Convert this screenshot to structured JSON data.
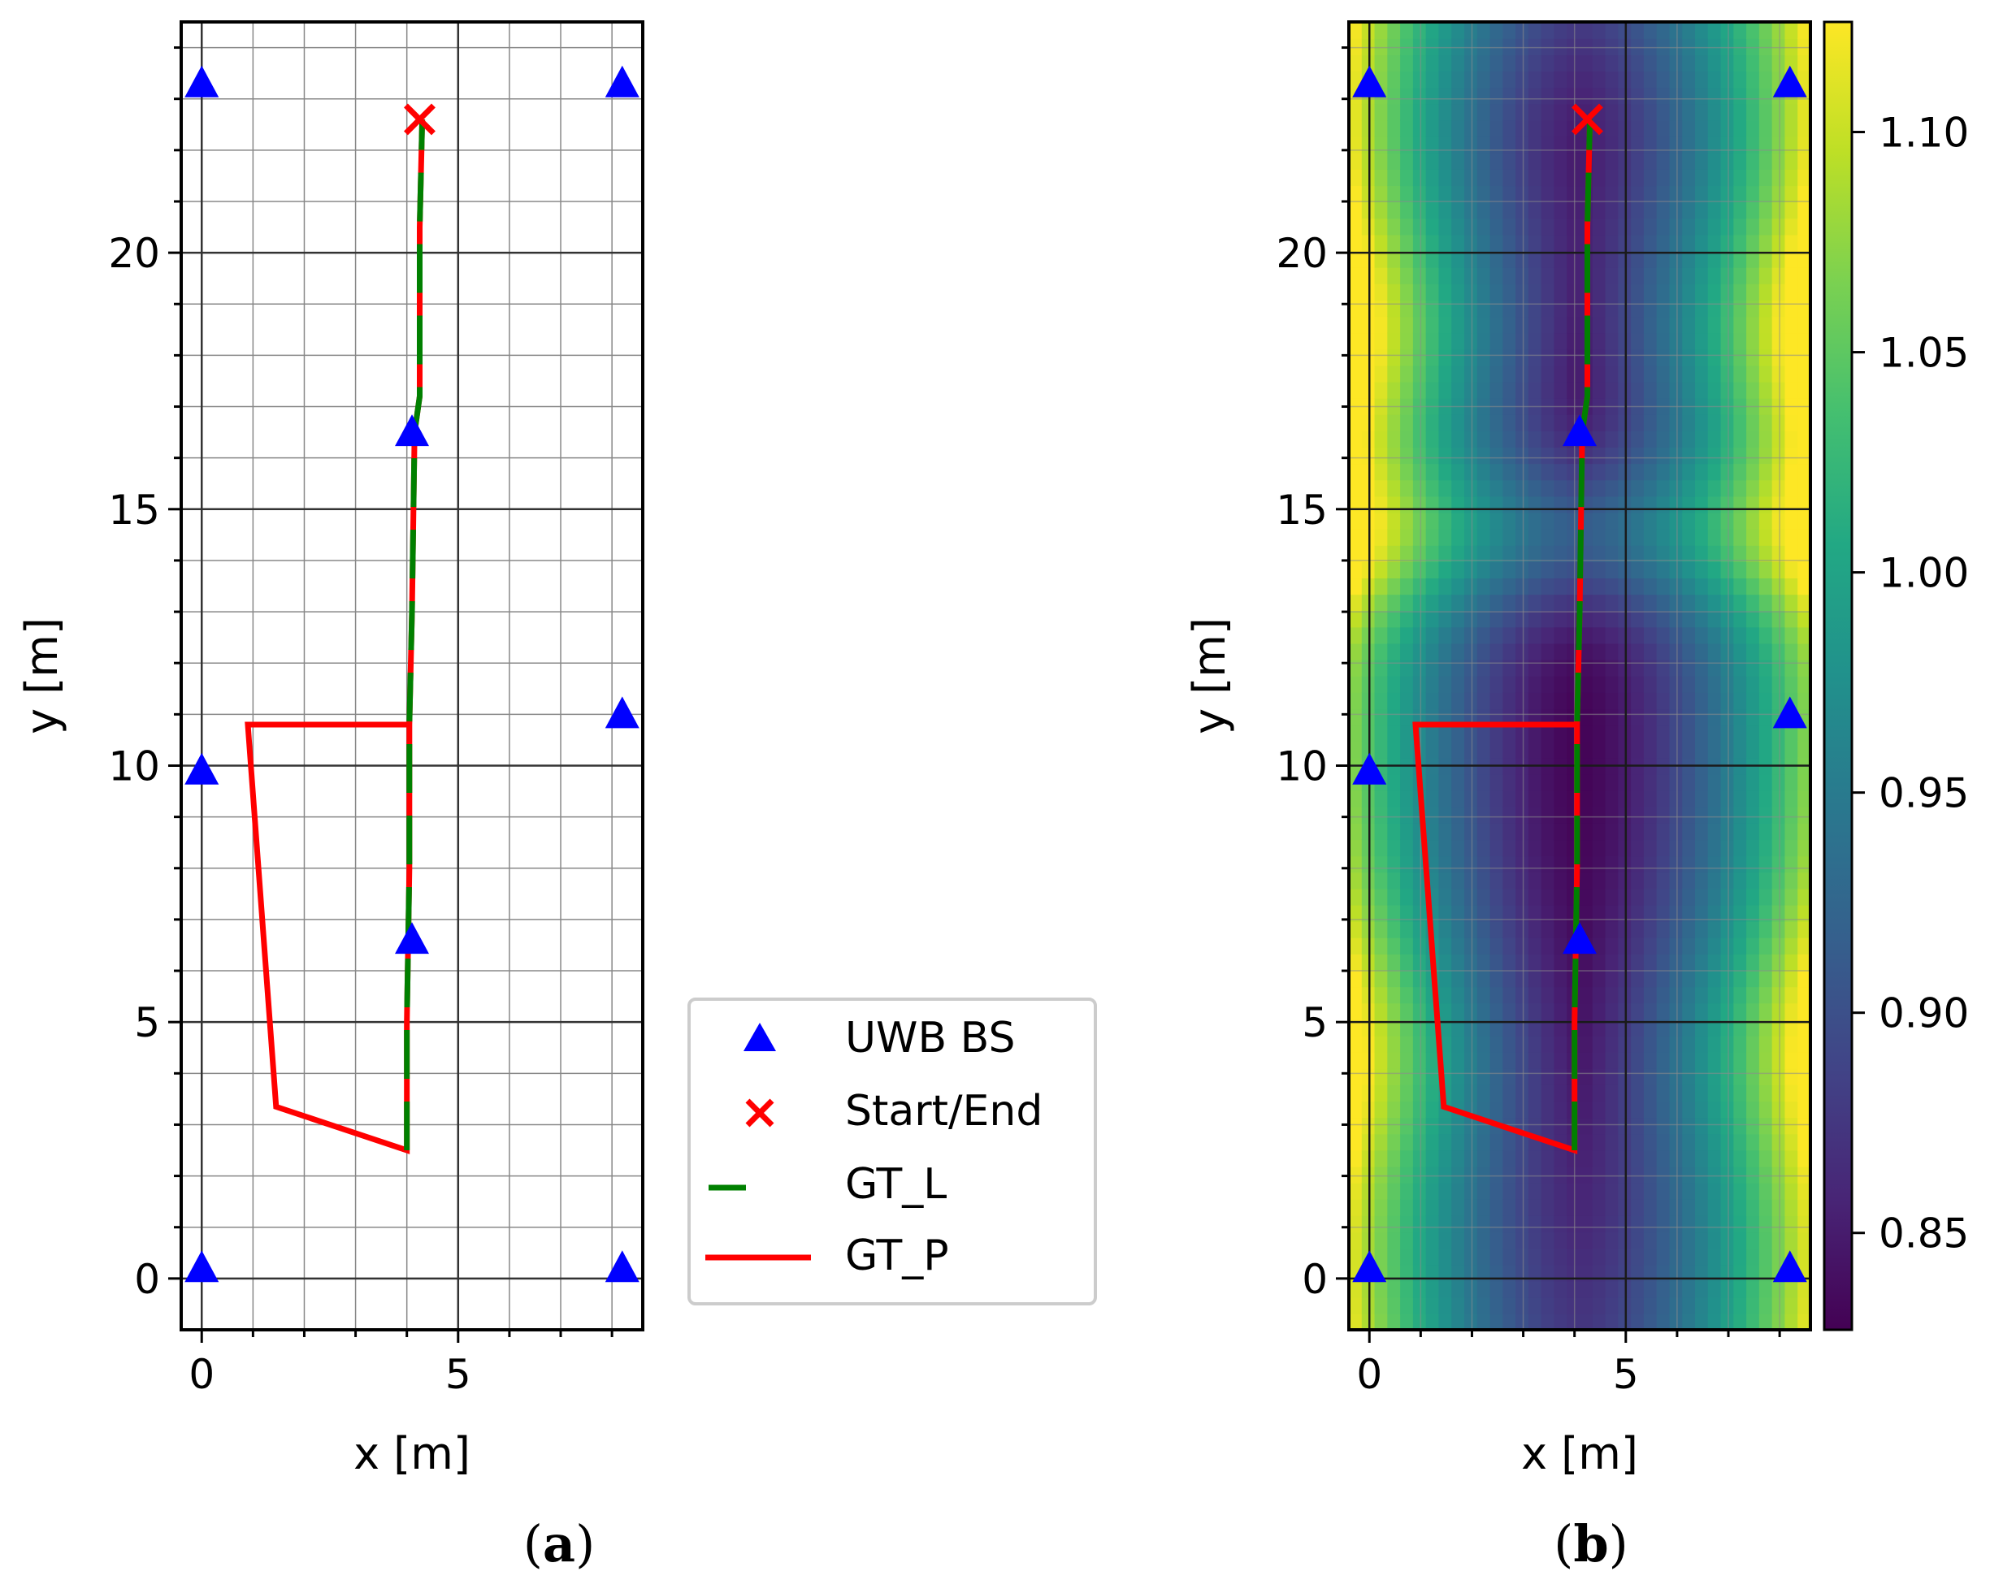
{
  "chart_data": [
    {
      "type": "line",
      "panel_label_open": "(",
      "panel_label_letter": "a",
      "panel_label_close": ")",
      "xlabel": "x [m]",
      "ylabel": "y [m]",
      "xlim": [
        -0.4,
        8.6
      ],
      "ylim": [
        -1.0,
        24.5
      ],
      "xticks": [
        0,
        5
      ],
      "xtick_labels": [
        "0",
        "5"
      ],
      "yticks": [
        0,
        5,
        10,
        15,
        20
      ],
      "ytick_labels": [
        "0",
        "5",
        "10",
        "15",
        "20"
      ],
      "grid": "major and minor",
      "background": "none"
    },
    {
      "type": "heatmap",
      "panel_label_open": "(",
      "panel_label_letter": "b",
      "panel_label_close": ")",
      "xlabel": "x [m]",
      "ylabel": "y [m]",
      "xlim": [
        -0.4,
        8.6
      ],
      "ylim": [
        -1.0,
        24.5
      ],
      "xticks": [
        0,
        5
      ],
      "xtick_labels": [
        "0",
        "5"
      ],
      "yticks": [
        0,
        5,
        10,
        15,
        20
      ],
      "ytick_labels": [
        "0",
        "5",
        "10",
        "15",
        "20"
      ],
      "grid": "major and minor",
      "background": "viridis scalar field",
      "colorbar": {
        "range": [
          0.828,
          1.125
        ],
        "ticks": [
          0.85,
          0.9,
          0.95,
          1.0,
          1.05,
          1.1
        ],
        "tick_labels": [
          "0.85",
          "0.90",
          "0.95",
          "1.00",
          "1.05",
          "1.10"
        ],
        "colormap": "viridis"
      }
    }
  ],
  "series": {
    "bs": {
      "name": "UWB BS",
      "marker": "triangle",
      "color": "#0000ff",
      "points": [
        [
          0,
          0.2
        ],
        [
          8.2,
          0.2
        ],
        [
          0,
          9.9
        ],
        [
          8.2,
          11.0
        ],
        [
          4.1,
          6.6
        ],
        [
          4.1,
          16.5
        ],
        [
          0,
          23.3
        ],
        [
          8.2,
          23.3
        ]
      ]
    },
    "start_end": {
      "name": "Start/End",
      "marker": "x",
      "color": "#ff0000",
      "point": [
        4.25,
        22.6
      ]
    },
    "gt_l": {
      "name": "GT_L",
      "color": "#008000",
      "style": "dashed",
      "points": [
        [
          4.0,
          2.5
        ],
        [
          4.0,
          5.0
        ],
        [
          4.05,
          8.0
        ],
        [
          4.05,
          10.8
        ],
        [
          4.1,
          13.0
        ],
        [
          4.15,
          16.5
        ],
        [
          4.25,
          17.2
        ],
        [
          4.25,
          20.5
        ],
        [
          4.3,
          22.6
        ]
      ]
    },
    "gt_p": {
      "name": "GT_P",
      "color": "#ff0000",
      "style": "solid",
      "points": [
        [
          4.3,
          22.6
        ],
        [
          4.25,
          20.5
        ],
        [
          4.25,
          17.2
        ],
        [
          4.15,
          16.5
        ],
        [
          4.1,
          13.0
        ],
        [
          4.05,
          10.8
        ],
        [
          0.9,
          10.8
        ],
        [
          1.45,
          3.35
        ],
        [
          4.0,
          2.5
        ],
        [
          4.0,
          5.0
        ],
        [
          4.05,
          8.0
        ],
        [
          4.05,
          10.8
        ]
      ]
    }
  },
  "legend": {
    "placement": "center, between panels",
    "entries": [
      {
        "marker": "triangle",
        "label": "UWB BS"
      },
      {
        "marker": "x",
        "label": "Start/End"
      },
      {
        "marker": "dash",
        "label": "GT_L"
      },
      {
        "marker": "line",
        "label": "GT_P"
      }
    ]
  }
}
